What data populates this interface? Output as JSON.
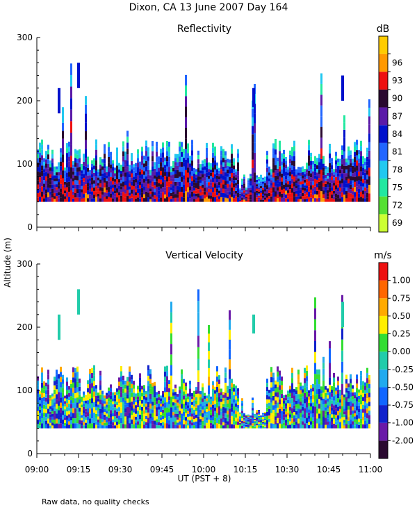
{
  "header": {
    "title": "Dixon, CA 13 June 2007  Day 164",
    "shared_ylabel": "Altitude (m)",
    "xlabel": "UT  (PST + 8)",
    "footnote": "Raw data, no quality checks"
  },
  "chart_data": [
    {
      "type": "heatmap",
      "title": "Reflectivity",
      "units": "dB",
      "xlabel": "UT  (PST + 8)",
      "ylabel": "Altitude (m)",
      "xlim": [
        "09:00",
        "11:00"
      ],
      "ylim": [
        0,
        300
      ],
      "x_ticks": [
        "09:00",
        "09:15",
        "09:30",
        "09:45",
        "10:00",
        "10:15",
        "10:30",
        "10:45",
        "11:00"
      ],
      "y_ticks": [
        0,
        100,
        200,
        300
      ],
      "colorbar": {
        "tick_labels": [
          "69",
          "72",
          "75",
          "78",
          "81",
          "84",
          "87",
          "90",
          "93",
          "96"
        ],
        "colors": [
          "#ccff33",
          "#55e033",
          "#22e8a0",
          "#22c8f0",
          "#2266ff",
          "#0011cc",
          "#5a1aa8",
          "#2a0a30",
          "#ee1111",
          "#ff9900",
          "#ffcc00"
        ]
      },
      "echo_layer": {
        "base_m": 40,
        "main_top_m": [
          90,
          140
        ],
        "tallest_top_m": 260
      },
      "isolated_echoes": [
        {
          "time": "09:08",
          "alt_m": [
            180,
            220
          ]
        },
        {
          "time": "09:15",
          "alt_m": [
            220,
            260
          ]
        },
        {
          "time": "10:18",
          "alt_m": [
            190,
            220
          ]
        },
        {
          "time": "10:50",
          "alt_m": [
            200,
            240
          ]
        }
      ]
    },
    {
      "type": "heatmap",
      "title": "Vertical Velocity",
      "units": "m/s",
      "xlabel": "UT  (PST + 8)",
      "ylabel": "Altitude (m)",
      "xlim": [
        "09:00",
        "11:00"
      ],
      "ylim": [
        0,
        300
      ],
      "x_ticks": [
        "09:00",
        "09:15",
        "09:30",
        "09:45",
        "10:00",
        "10:15",
        "10:30",
        "10:45",
        "11:00"
      ],
      "y_ticks": [
        0,
        100,
        200,
        300
      ],
      "colorbar": {
        "tick_labels": [
          "-2.00",
          "-1.00",
          "-0.75",
          "-0.50",
          "-0.25",
          "0.00",
          "0.25",
          "0.50",
          "0.75",
          "1.00"
        ],
        "colors": [
          "#2a0a30",
          "#6a1aa8",
          "#1122cc",
          "#1166ff",
          "#22aaee",
          "#22ccaa",
          "#33dd33",
          "#ffee00",
          "#ffaa00",
          "#ff6600",
          "#ee1111"
        ]
      },
      "echo_layer": {
        "base_m": 40,
        "main_top_m": [
          90,
          140
        ],
        "tallest_top_m": 260
      },
      "isolated_echoes": [
        {
          "time": "09:08",
          "alt_m": [
            180,
            220
          ]
        },
        {
          "time": "09:15",
          "alt_m": [
            220,
            260
          ]
        },
        {
          "time": "10:18",
          "alt_m": [
            190,
            220
          ]
        },
        {
          "time": "10:50",
          "alt_m": [
            200,
            240
          ]
        }
      ]
    }
  ]
}
